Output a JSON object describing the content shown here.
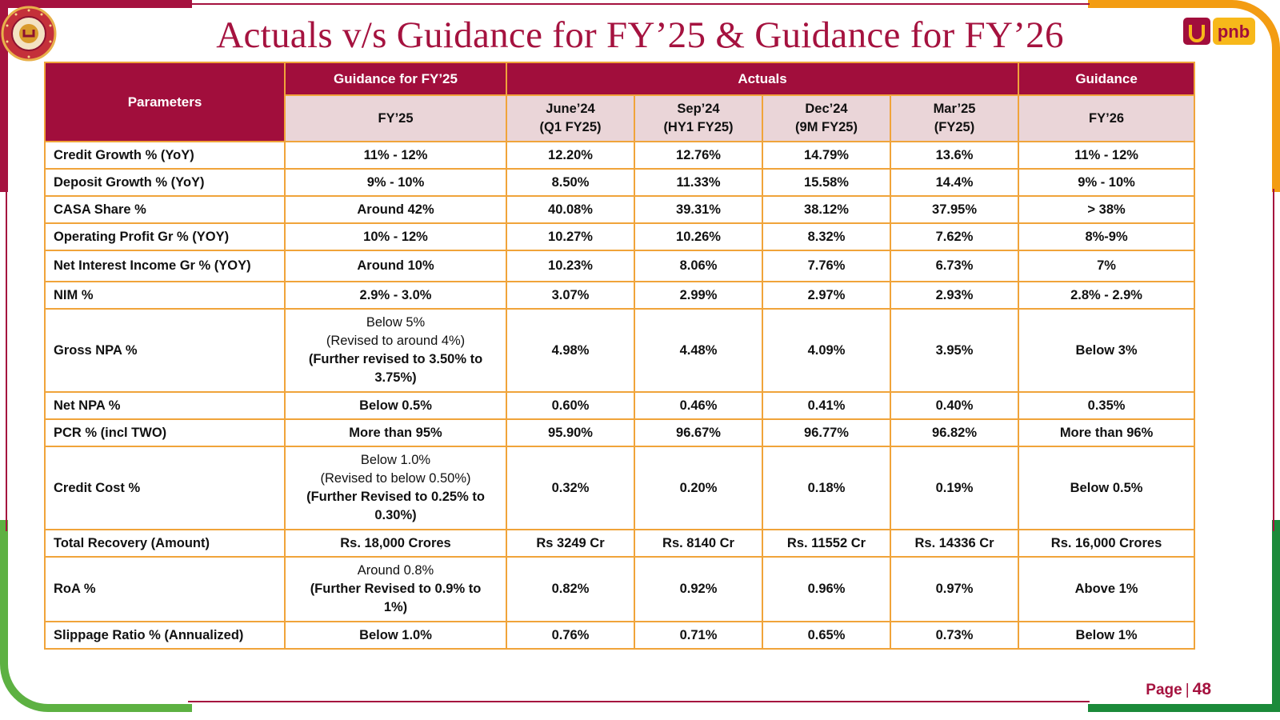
{
  "title": "Actuals v/s Guidance for FY’25 & Guidance for FY’26",
  "emblem": {
    "icon": "parivartan-emblem-icon",
    "text_top": "PARIVARTAN",
    "text_bottom": "Together we can"
  },
  "logo": {
    "icon": "pnb-logo-icon",
    "text": "pnb"
  },
  "colors": {
    "maroon": "#a10e3c",
    "orange": "#f39c12",
    "green": "#5db142",
    "subheader_bg": "#ead5d8"
  },
  "table": {
    "group_headers": {
      "parameters": "Parameters",
      "guidance_fy25": "Guidance for FY’25",
      "actuals": "Actuals",
      "guidance": "Guidance"
    },
    "sub_headers": {
      "fy25": "FY’25",
      "q1": [
        "June’24",
        "(Q1 FY25)"
      ],
      "hy1": [
        "Sep’24",
        "(HY1 FY25)"
      ],
      "m9": [
        "Dec’24",
        "(9M FY25)"
      ],
      "fy25a": [
        "Mar’25",
        "(FY25)"
      ],
      "fy26": "FY’26"
    },
    "rows": [
      {
        "param": "Credit Growth % (YoY)",
        "guidance": "11% - 12%",
        "q1": "12.20%",
        "hy1": "12.76%",
        "m9": "14.79%",
        "fy25": "13.6%",
        "fy26": "11% - 12%"
      },
      {
        "param": "Deposit Growth % (YoY)",
        "guidance": "9% - 10%",
        "q1": "8.50%",
        "hy1": "11.33%",
        "m9": "15.58%",
        "fy25": "14.4%",
        "fy26": "9% - 10%"
      },
      {
        "param": "CASA Share %",
        "guidance": "Around 42%",
        "q1": "40.08%",
        "hy1": "39.31%",
        "m9": "38.12%",
        "fy25": "37.95%",
        "fy26": "> 38%"
      },
      {
        "param": "Operating Profit Gr % (YOY)",
        "guidance": "10% - 12%",
        "q1": "10.27%",
        "hy1": "10.26%",
        "m9": "8.32%",
        "fy25": "7.62%",
        "fy26": "8%-9%"
      },
      {
        "param": "Net Interest Income Gr % (YOY)",
        "guidance": "Around 10%",
        "q1": "10.23%",
        "hy1": "8.06%",
        "m9": "7.76%",
        "fy25": "6.73%",
        "fy26": "7%"
      },
      {
        "param": "NIM %",
        "guidance": "2.9% - 3.0%",
        "q1": "3.07%",
        "hy1": "2.99%",
        "m9": "2.97%",
        "fy25": "2.93%",
        "fy26": "2.8% - 2.9%"
      },
      {
        "param": "Gross NPA %",
        "guidance_lines": [
          "Below 5%",
          "(Revised to around 4%)",
          "(Further revised to 3.50% to",
          "3.75%)"
        ],
        "q1": "4.98%",
        "hy1": "4.48%",
        "m9": "4.09%",
        "fy25": "3.95%",
        "fy26": "Below 3%"
      },
      {
        "param": "Net NPA %",
        "guidance": "Below 0.5%",
        "q1": "0.60%",
        "hy1": "0.46%",
        "m9": "0.41%",
        "fy25": "0.40%",
        "fy26": "0.35%"
      },
      {
        "param": "PCR % (incl TWO)",
        "guidance": "More than 95%",
        "q1": "95.90%",
        "hy1": "96.67%",
        "m9": "96.77%",
        "fy25": "96.82%",
        "fy26": "More than 96%"
      },
      {
        "param": "Credit Cost %",
        "guidance_lines": [
          "Below 1.0%",
          "(Revised to below 0.50%)",
          "(Further Revised to 0.25% to",
          "0.30%)"
        ],
        "q1": "0.32%",
        "hy1": "0.20%",
        "m9": "0.18%",
        "fy25": "0.19%",
        "fy26": "Below 0.5%"
      },
      {
        "param": "Total Recovery (Amount)",
        "guidance": "Rs. 18,000 Crores",
        "q1": "Rs 3249 Cr",
        "hy1": "Rs. 8140 Cr",
        "m9": "Rs. 11552 Cr",
        "fy25": "Rs. 14336 Cr",
        "fy26": "Rs. 16,000 Crores"
      },
      {
        "param": "RoA %",
        "guidance_lines": [
          "Around 0.8%",
          "(Further Revised to 0.9% to",
          "1%)"
        ],
        "q1": "0.82%",
        "hy1": "0.92%",
        "m9": "0.96%",
        "fy25": "0.97%",
        "fy26": "Above 1%"
      },
      {
        "param": "Slippage Ratio % (Annualized)",
        "guidance": "Below 1.0%",
        "q1": "0.76%",
        "hy1": "0.71%",
        "m9": "0.65%",
        "fy25": "0.73%",
        "fy26": "Below 1%"
      }
    ]
  },
  "footer": {
    "page_label": "Page",
    "separator": "|",
    "page_number": "48"
  }
}
